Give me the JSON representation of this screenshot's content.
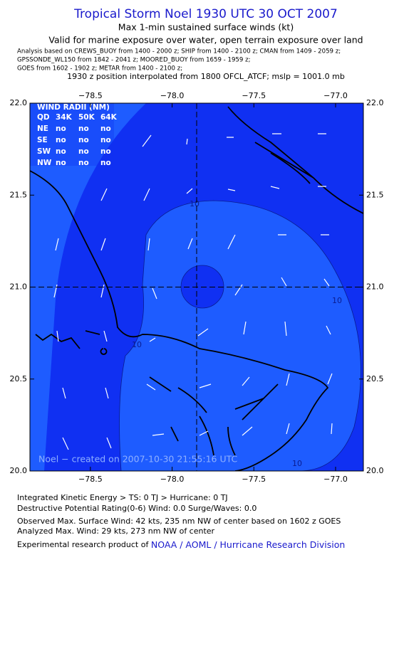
{
  "header": {
    "title": "Tropical Storm Noel 1930 UTC 30 OCT 2007",
    "subtitle": "Max 1-min sustained surface winds (kt)",
    "valid": "Valid for marine exposure over water, open terrain exposure over land",
    "analysis": [
      "Analysis based on  CREWS_BUOY from 1400 - 2000 z;  SHIP from 1400 - 2100 z;  CMAN from 1409 - 2059 z;",
      "GPSSONDE_WL150 from 1842 - 2041 z;  MOORED_BUOY from 1659 - 1959 z;",
      "GOES from 1602 - 1902 z;  METAR from 1400 - 2100 z;"
    ],
    "position": "1930 z position interpolated from 1800 OFCL_ATCF; mslp = 1001.0 mb"
  },
  "map": {
    "xlim": [
      -78.87,
      -76.83
    ],
    "ylim": [
      20.0,
      22.0
    ],
    "xticks": [
      {
        "value": -78.5,
        "label": "−78.5"
      },
      {
        "value": -78.0,
        "label": "−78.0"
      },
      {
        "value": -77.5,
        "label": "−77.5"
      },
      {
        "value": -77.0,
        "label": "−77.0"
      }
    ],
    "yticks": [
      {
        "value": 20.0,
        "label": "20.0"
      },
      {
        "value": 20.5,
        "label": "20.5"
      },
      {
        "value": 21.0,
        "label": "21.0"
      },
      {
        "value": 21.5,
        "label": "21.5"
      },
      {
        "value": 22.0,
        "label": "22.0"
      }
    ],
    "center": {
      "lon": -77.85,
      "lat": 21.0
    },
    "wind_radii": {
      "title": "WIND RADII (NM)",
      "header": [
        "QD",
        "34K",
        "50K",
        "64K"
      ],
      "rows": [
        [
          "NE",
          "no",
          "no",
          "no"
        ],
        [
          "SE",
          "no",
          "no",
          "no"
        ],
        [
          "SW",
          "no",
          "no",
          "no"
        ],
        [
          "NW",
          "no",
          "no",
          "no"
        ]
      ]
    },
    "contour_labels": [
      "10",
      "10",
      "10",
      "10"
    ],
    "credit": "Noel − created on 2007-10-30 21:55:16 UTC"
  },
  "footer": {
    "ike": "Integrated Kinetic Energy > TS: 0 TJ   > Hurricane: 0 TJ",
    "dpr": "Destructive Potential Rating(0-6)   Wind: 0.0 Surge/Waves: 0.0",
    "observed": "Observed Max. Surface Wind: 42 kts, 235 nm NW of center based on 1602 z GOES",
    "analyzed": "Analyzed Max. Wind: 29 kts, 273 nm NW of center",
    "product": "Experimental research product of ",
    "link": "NOAA / AOML / Hurricane Research Division"
  }
}
